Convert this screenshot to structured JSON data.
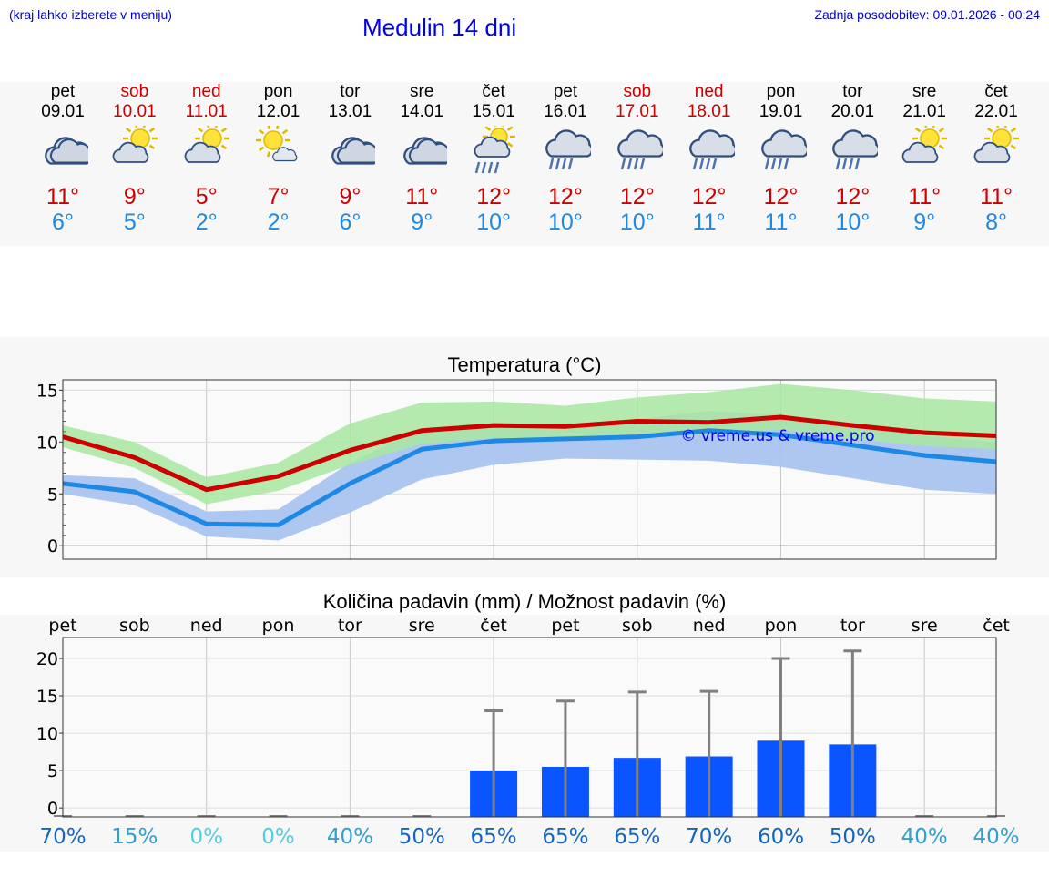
{
  "header": {
    "hint": "(kraj lahko izberete v meniju)",
    "title": "Medulin 14 dni",
    "updated": "Zadnja posodobitev: 09.01.2026 - 00:24"
  },
  "days": [
    {
      "name": "pet",
      "date": "09.01",
      "weekend": false,
      "icon": "cloudy-icon",
      "max": "11°",
      "min": "6°"
    },
    {
      "name": "sob",
      "date": "10.01",
      "weekend": true,
      "icon": "sun-cloud-icon",
      "max": "9°",
      "min": "5°"
    },
    {
      "name": "ned",
      "date": "11.01",
      "weekend": true,
      "icon": "sun-cloud-icon",
      "max": "5°",
      "min": "2°"
    },
    {
      "name": "pon",
      "date": "12.01",
      "weekend": false,
      "icon": "sun-small-cloud-icon",
      "max": "7°",
      "min": "2°"
    },
    {
      "name": "tor",
      "date": "13.01",
      "weekend": false,
      "icon": "cloudy-icon",
      "max": "9°",
      "min": "6°"
    },
    {
      "name": "sre",
      "date": "14.01",
      "weekend": false,
      "icon": "cloudy-icon",
      "max": "11°",
      "min": "9°"
    },
    {
      "name": "čet",
      "date": "15.01",
      "weekend": false,
      "icon": "sun-rain-icon",
      "max": "12°",
      "min": "10°"
    },
    {
      "name": "pet",
      "date": "16.01",
      "weekend": false,
      "icon": "rain-icon",
      "max": "12°",
      "min": "10°"
    },
    {
      "name": "sob",
      "date": "17.01",
      "weekend": true,
      "icon": "rain-icon",
      "max": "12°",
      "min": "10°"
    },
    {
      "name": "ned",
      "date": "18.01",
      "weekend": true,
      "icon": "rain-icon",
      "max": "12°",
      "min": "11°"
    },
    {
      "name": "pon",
      "date": "19.01",
      "weekend": false,
      "icon": "rain-icon",
      "max": "12°",
      "min": "11°"
    },
    {
      "name": "tor",
      "date": "20.01",
      "weekend": false,
      "icon": "rain-icon",
      "max": "12°",
      "min": "10°"
    },
    {
      "name": "sre",
      "date": "21.01",
      "weekend": false,
      "icon": "sun-cloud-icon",
      "max": "11°",
      "min": "9°"
    },
    {
      "name": "čet",
      "date": "22.01",
      "weekend": false,
      "icon": "sun-cloud-icon",
      "max": "11°",
      "min": "8°"
    }
  ],
  "colors": {
    "max": "#cc0000",
    "min": "#1e88e5",
    "maxBand": "#a8e6a0",
    "minBand": "#aac4f0",
    "overlap": "#7cc6a6",
    "bar": "#0a55ff"
  },
  "chart_data": [
    {
      "type": "line",
      "title": "Temperatura (°C)",
      "watermark": "© vreme.us & vreme.pro",
      "ylim": [
        -1.3,
        16
      ],
      "yticks": [
        0,
        5,
        10,
        15
      ],
      "x": [
        0,
        1,
        2,
        3,
        4,
        5,
        6,
        7,
        8,
        9,
        10,
        11,
        12,
        13
      ],
      "series": [
        {
          "name": "max",
          "values": [
            10.5,
            8.5,
            5.4,
            6.7,
            9.2,
            11.1,
            11.6,
            11.5,
            12.0,
            11.9,
            12.4,
            11.6,
            10.9,
            10.6
          ],
          "band_low": [
            9.5,
            7.5,
            4.0,
            5.3,
            7.8,
            9.8,
            10.4,
            10.3,
            10.8,
            10.7,
            11.2,
            10.3,
            9.6,
            9.3
          ],
          "band_high": [
            11.6,
            10.0,
            6.6,
            8.0,
            11.8,
            13.8,
            13.9,
            13.5,
            14.3,
            14.8,
            15.6,
            15.0,
            14.2,
            13.9
          ]
        },
        {
          "name": "min",
          "values": [
            6.0,
            5.2,
            2.1,
            2.0,
            6.0,
            9.3,
            10.1,
            10.3,
            10.5,
            11.1,
            10.7,
            9.7,
            8.7,
            8.1
          ],
          "band_low": [
            5.0,
            3.9,
            0.9,
            0.5,
            3.2,
            6.4,
            7.8,
            8.4,
            8.3,
            8.2,
            7.6,
            6.5,
            5.4,
            5.0
          ],
          "band_high": [
            6.8,
            6.5,
            3.3,
            3.5,
            8.0,
            11.3,
            11.8,
            11.8,
            12.2,
            13.0,
            12.6,
            11.5,
            10.6,
            10.0
          ]
        }
      ]
    },
    {
      "type": "bar",
      "title": "Količina padavin (mm) / Možnost padavin (%)",
      "categories": [
        "pet",
        "sob",
        "ned",
        "pon",
        "tor",
        "sre",
        "čet",
        "pet",
        "sob",
        "ned",
        "pon",
        "tor",
        "sre",
        "čet"
      ],
      "values": [
        0,
        0,
        0,
        0,
        0,
        0,
        5.0,
        5.5,
        6.7,
        6.9,
        9.0,
        8.5,
        0,
        0
      ],
      "error_high": [
        0,
        0,
        0,
        0,
        0,
        0,
        13.0,
        14.3,
        15.5,
        15.6,
        20.0,
        21.0,
        0,
        0
      ],
      "ylim": [
        -1.2,
        22.8
      ],
      "yticks": [
        0,
        5,
        10,
        15,
        20
      ],
      "chance": [
        "70%",
        "15%",
        "0%",
        "0%",
        "40%",
        "50%",
        "65%",
        "65%",
        "65%",
        "70%",
        "60%",
        "50%",
        "40%",
        "40%"
      ]
    }
  ]
}
